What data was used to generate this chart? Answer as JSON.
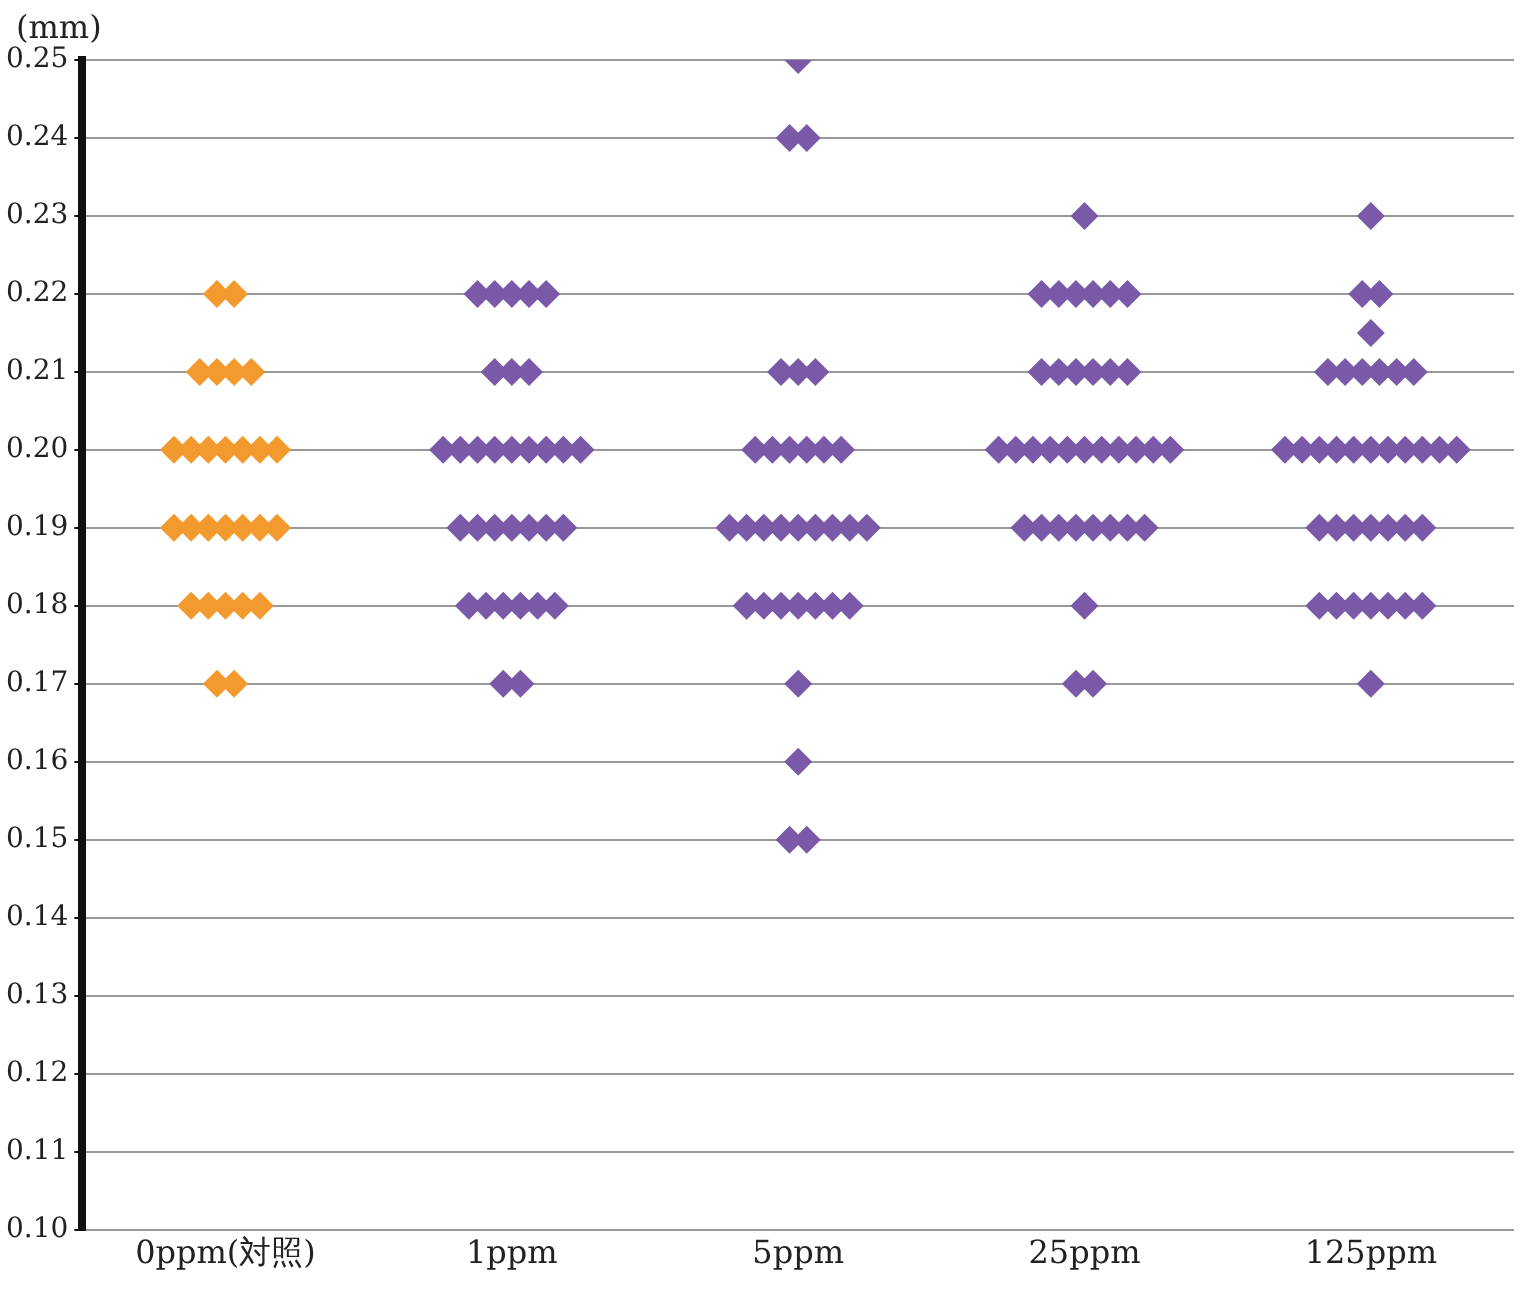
{
  "chart_data": {
    "type": "scatter",
    "ylabel": "(mm)",
    "marker": "diamond",
    "grid": "y",
    "categories": [
      "0ppm(対照)",
      "1ppm",
      "5ppm",
      "25ppm",
      "125ppm"
    ],
    "ylim": [
      0.1,
      0.25
    ],
    "yticks": [
      {
        "value": 0.1,
        "label": "0.10"
      },
      0.11,
      0.12,
      0.13,
      0.14,
      0.15,
      0.16,
      0.17,
      0.18,
      0.19,
      {
        "value": 0.2,
        "label": "0.20"
      },
      0.21,
      0.22,
      0.23,
      0.24,
      0.25
    ],
    "series": [
      {
        "color": "#f39a2e",
        "x": [
          "0ppm(対照)",
          "0ppm(対照)",
          "0ppm(対照)",
          "0ppm(対照)",
          "0ppm(対照)",
          "0ppm(対照)",
          "0ppm(対照)",
          "0ppm(対照)",
          "0ppm(対照)",
          "0ppm(対照)",
          "0ppm(対照)",
          "0ppm(対照)",
          "0ppm(対照)",
          "0ppm(対照)",
          "0ppm(対照)",
          "0ppm(対照)",
          "0ppm(対照)",
          "0ppm(対照)",
          "0ppm(対照)",
          "0ppm(対照)",
          "0ppm(対照)",
          "0ppm(対照)",
          "0ppm(対照)",
          "0ppm(対照)",
          "0ppm(対照)",
          "0ppm(対照)",
          "0ppm(対照)"
        ],
        "values": [
          0.22,
          0.22,
          0.21,
          0.21,
          0.21,
          0.21,
          0.2,
          0.2,
          0.2,
          0.2,
          0.2,
          0.2,
          0.2,
          0.19,
          0.19,
          0.19,
          0.19,
          0.19,
          0.19,
          0.19,
          0.18,
          0.18,
          0.18,
          0.18,
          0.18,
          0.17,
          0.17
        ]
      },
      {
        "color": "#7a5aa8",
        "x": [
          "1ppm",
          "1ppm",
          "1ppm",
          "1ppm",
          "1ppm",
          "1ppm",
          "1ppm",
          "1ppm",
          "1ppm",
          "1ppm",
          "1ppm",
          "1ppm",
          "1ppm",
          "1ppm",
          "1ppm",
          "1ppm",
          "1ppm",
          "1ppm",
          "1ppm",
          "1ppm",
          "1ppm",
          "1ppm",
          "1ppm",
          "1ppm",
          "1ppm",
          "1ppm",
          "1ppm",
          "1ppm",
          "1ppm",
          "1ppm",
          "1ppm",
          "1ppm",
          "5ppm",
          "5ppm",
          "5ppm",
          "5ppm",
          "5ppm",
          "5ppm",
          "5ppm",
          "5ppm",
          "5ppm",
          "5ppm",
          "5ppm",
          "5ppm",
          "5ppm",
          "5ppm",
          "5ppm",
          "5ppm",
          "5ppm",
          "5ppm",
          "5ppm",
          "5ppm",
          "5ppm",
          "5ppm",
          "5ppm",
          "5ppm",
          "5ppm",
          "5ppm",
          "5ppm",
          "5ppm",
          "5ppm",
          "5ppm",
          "5ppm",
          "5ppm",
          "25ppm",
          "25ppm",
          "25ppm",
          "25ppm",
          "25ppm",
          "25ppm",
          "25ppm",
          "25ppm",
          "25ppm",
          "25ppm",
          "25ppm",
          "25ppm",
          "25ppm",
          "25ppm",
          "25ppm",
          "25ppm",
          "25ppm",
          "25ppm",
          "25ppm",
          "25ppm",
          "25ppm",
          "25ppm",
          "25ppm",
          "25ppm",
          "25ppm",
          "25ppm",
          "25ppm",
          "25ppm",
          "25ppm",
          "25ppm",
          "25ppm",
          "25ppm",
          "25ppm",
          "25ppm",
          "25ppm",
          "125ppm",
          "125ppm",
          "125ppm",
          "125ppm",
          "125ppm",
          "125ppm",
          "125ppm",
          "125ppm",
          "125ppm",
          "125ppm",
          "125ppm",
          "125ppm",
          "125ppm",
          "125ppm",
          "125ppm",
          "125ppm",
          "125ppm",
          "125ppm",
          "125ppm",
          "125ppm",
          "125ppm",
          "125ppm",
          "125ppm",
          "125ppm",
          "125ppm",
          "125ppm",
          "125ppm",
          "125ppm",
          "125ppm",
          "125ppm",
          "125ppm",
          "125ppm",
          "125ppm",
          "125ppm",
          "125ppm",
          "125ppm"
        ],
        "values": [
          0.22,
          0.22,
          0.22,
          0.22,
          0.22,
          0.21,
          0.21,
          0.21,
          0.2,
          0.2,
          0.2,
          0.2,
          0.2,
          0.2,
          0.2,
          0.2,
          0.2,
          0.19,
          0.19,
          0.19,
          0.19,
          0.19,
          0.19,
          0.19,
          0.18,
          0.18,
          0.18,
          0.18,
          0.18,
          0.18,
          0.17,
          0.17,
          0.25,
          0.24,
          0.24,
          0.21,
          0.21,
          0.21,
          0.2,
          0.2,
          0.2,
          0.2,
          0.2,
          0.2,
          0.19,
          0.19,
          0.19,
          0.19,
          0.19,
          0.19,
          0.19,
          0.19,
          0.19,
          0.18,
          0.18,
          0.18,
          0.18,
          0.18,
          0.18,
          0.18,
          0.17,
          0.16,
          0.15,
          0.15,
          0.23,
          0.22,
          0.22,
          0.22,
          0.22,
          0.22,
          0.22,
          0.21,
          0.21,
          0.21,
          0.21,
          0.21,
          0.21,
          0.2,
          0.2,
          0.2,
          0.2,
          0.2,
          0.2,
          0.2,
          0.2,
          0.2,
          0.2,
          0.2,
          0.19,
          0.19,
          0.19,
          0.19,
          0.19,
          0.19,
          0.19,
          0.19,
          0.18,
          0.17,
          0.17,
          0.23,
          0.22,
          0.22,
          0.215,
          0.21,
          0.21,
          0.21,
          0.21,
          0.21,
          0.21,
          0.2,
          0.2,
          0.2,
          0.2,
          0.2,
          0.2,
          0.2,
          0.2,
          0.2,
          0.2,
          0.2,
          0.19,
          0.19,
          0.19,
          0.19,
          0.19,
          0.19,
          0.19,
          0.18,
          0.18,
          0.18,
          0.18,
          0.18,
          0.18,
          0.18,
          0.17
        ]
      }
    ]
  }
}
